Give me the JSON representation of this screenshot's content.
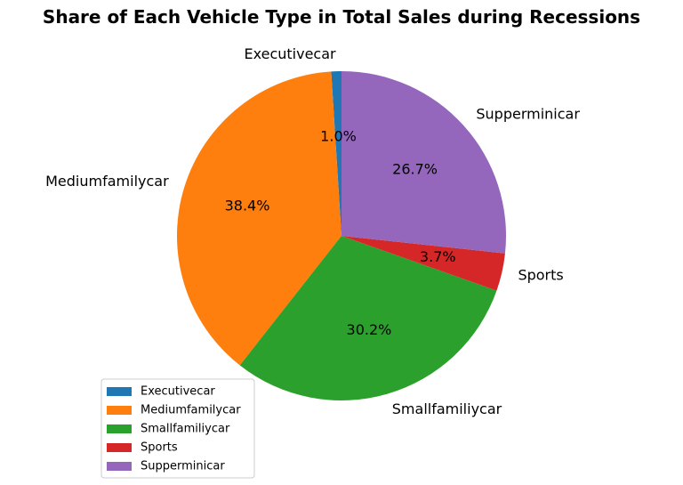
{
  "chart_data": {
    "type": "pie",
    "title": "Share of Each Vehicle Type in Total Sales during Recessions",
    "categories": [
      "Executivecar",
      "Mediumfamilycar",
      "Smallfamiliycar",
      "Sports",
      "Supperminicar"
    ],
    "values": [
      1.0,
      38.4,
      30.2,
      3.7,
      26.7
    ],
    "value_labels": [
      "1.0%",
      "38.4%",
      "30.2%",
      "3.7%",
      "26.7%"
    ],
    "colors": [
      "#1f77b4",
      "#ff7f0e",
      "#2ca02c",
      "#d62728",
      "#9467bd"
    ],
    "start_angle_deg": 90,
    "direction": "counterclockwise",
    "legend_position": "lower-left"
  }
}
